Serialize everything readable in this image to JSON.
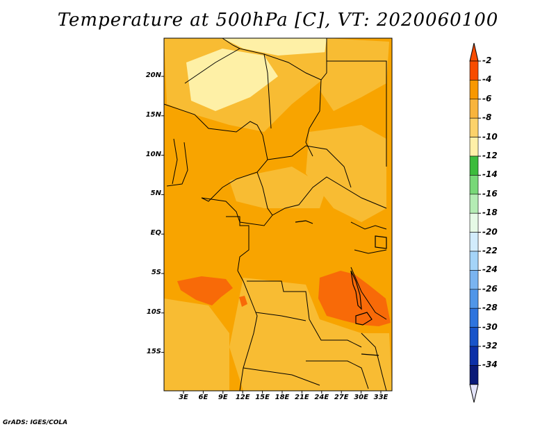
{
  "title": "Temperature at 500hPa [C], VT: 2020060100",
  "credit": "GrADS: IGES/COLA",
  "map": {
    "y_axis_labels": [
      "20N",
      "15N",
      "10N",
      "5N",
      "EQ",
      "5S",
      "10S",
      "15S"
    ],
    "x_axis_labels": [
      "3E",
      "6E",
      "9E",
      "12E",
      "15E",
      "18E",
      "21E",
      "24E",
      "27E",
      "30E",
      "33E"
    ],
    "field_colors": {
      "m4_to_m2": "#f86a08",
      "m6_to_m4": "#f8a400",
      "m8_to_m6": "#f8bc33",
      "m10_to_m8": "#fcd56c",
      "m12_to_m10": "#fef0a6"
    }
  },
  "colorbar": {
    "labels": [
      "-2",
      "-4",
      "-6",
      "-8",
      "-10",
      "-12",
      "-14",
      "-16",
      "-18",
      "-20",
      "-22",
      "-24",
      "-26",
      "-28",
      "-30",
      "-32",
      "-34"
    ],
    "colors": [
      "#f84c00",
      "#f89800",
      "#f8b43c",
      "#fcd26a",
      "#fff0a8",
      "#3cbc3c",
      "#78d878",
      "#b4ecb4",
      "#e6fae6",
      "#d2ecfc",
      "#a4d4f8",
      "#7ab4f0",
      "#5096e8",
      "#2e74de",
      "#1854ca",
      "#0c30a8",
      "#0a1a78",
      "#e4e4fa"
    ],
    "top_triangle_color": "#f84c00",
    "bottom_triangle_color": "#e4e4fa"
  }
}
